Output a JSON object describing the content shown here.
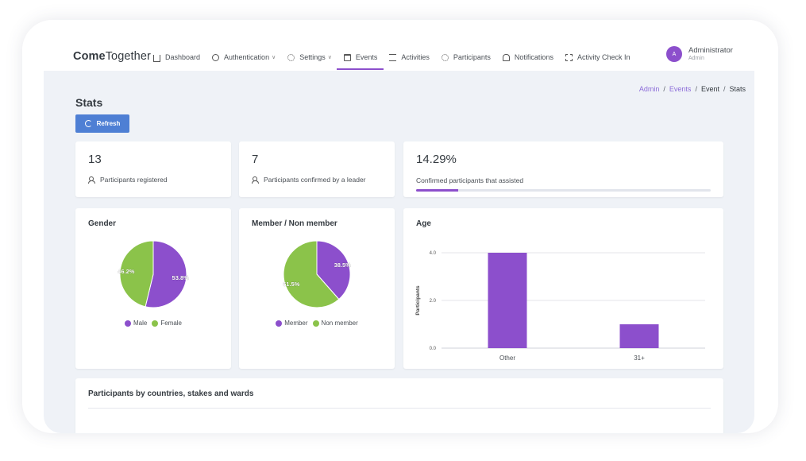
{
  "app": {
    "brand_bold": "Come",
    "brand_rest": "Together"
  },
  "nav": {
    "items": [
      {
        "label": "Dashboard",
        "icon": "house-icon"
      },
      {
        "label": "Authentication",
        "icon": "fingerprint-icon",
        "dropdown": true
      },
      {
        "label": "Settings",
        "icon": "gear-icon",
        "dropdown": true
      },
      {
        "label": "Events",
        "icon": "calendar-icon",
        "active": true
      },
      {
        "label": "Activities",
        "icon": "list-icon"
      },
      {
        "label": "Participants",
        "icon": "people-icon"
      },
      {
        "label": "Notifications",
        "icon": "bell-icon"
      },
      {
        "label": "Activity Check In",
        "icon": "qr-icon"
      }
    ]
  },
  "user": {
    "initial": "A",
    "name": "Administrator",
    "role": "Admin"
  },
  "breadcrumb": {
    "items": [
      "Admin",
      "Events",
      "Event",
      "Stats"
    ]
  },
  "page": {
    "title": "Stats",
    "refresh_label": "Refresh"
  },
  "stats": {
    "registered": {
      "value": "13",
      "label": "Participants registered"
    },
    "confirmed": {
      "value": "7",
      "label": "Participants confirmed by a leader"
    },
    "assisted": {
      "value": "14.29%",
      "label": "Confirmed participants that assisted",
      "percent": 14.29
    }
  },
  "colors": {
    "accent": "#8c4fcc",
    "green": "#8bc34a",
    "button": "#4e7fd4"
  },
  "chart_data": [
    {
      "type": "pie",
      "title": "Gender",
      "slices": [
        {
          "name": "Male",
          "value": 53.8,
          "label": "53.8%",
          "color": "#8c4fcc"
        },
        {
          "name": "Female",
          "value": 46.2,
          "label": "46.2%",
          "color": "#8bc34a"
        }
      ]
    },
    {
      "type": "pie",
      "title": "Member / Non member",
      "slices": [
        {
          "name": "Member",
          "value": 38.5,
          "label": "38.5%",
          "color": "#8c4fcc"
        },
        {
          "name": "Non member",
          "value": 61.5,
          "label": "61.5%",
          "color": "#8bc34a"
        }
      ]
    },
    {
      "type": "bar",
      "title": "Age",
      "categories": [
        "Other",
        "31+"
      ],
      "values": [
        4,
        1
      ],
      "ylabel": "Participants",
      "ylim": [
        0,
        4
      ],
      "yticks": [
        "0.0",
        "2.0",
        "4.0"
      ],
      "grid": true,
      "color": "#8c4fcc"
    }
  ],
  "countries": {
    "title": "Participants by countries, stakes and wards"
  }
}
